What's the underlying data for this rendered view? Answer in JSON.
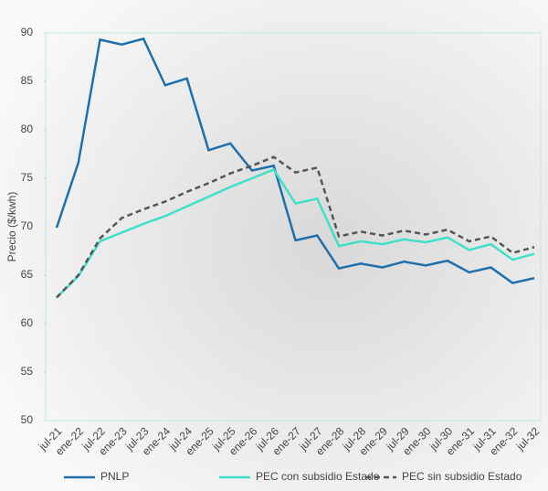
{
  "chart_data": {
    "type": "line",
    "y_label": "Precio ($/kwh)",
    "categories": [
      "jul-21",
      "ene-22",
      "jul-22",
      "ene-23",
      "jul-23",
      "ene-24",
      "jul-24",
      "ene-25",
      "jul-25",
      "ene-26",
      "jul-26",
      "ene-27",
      "jul-27",
      "ene-28",
      "jul-28",
      "ene-29",
      "jul-29",
      "ene-30",
      "jul-30",
      "ene-31",
      "jul-31",
      "ene-32",
      "jul-32"
    ],
    "series": [
      {
        "name": "PNLP",
        "color": "#1f6fad",
        "line_style": "solid",
        "values": [
          69.9,
          76.6,
          89.3,
          88.8,
          89.4,
          84.6,
          85.3,
          77.9,
          78.6,
          75.8,
          76.3,
          68.6,
          69.1,
          65.7,
          66.2,
          65.8,
          66.4,
          66.0,
          66.5,
          65.3,
          65.8,
          64.2,
          64.7
        ]
      },
      {
        "name": "PEC con subsidio Estado",
        "color": "#3ee0c8",
        "line_style": "solid",
        "values": [
          62.7,
          64.9,
          68.5,
          69.4,
          70.3,
          71.1,
          72.1,
          73.1,
          74.1,
          75.0,
          75.9,
          72.4,
          72.9,
          68.0,
          68.5,
          68.2,
          68.7,
          68.4,
          68.9,
          67.6,
          68.2,
          66.6,
          67.2
        ]
      },
      {
        "name": "PEC sin subsidio Estado",
        "color": "#555555",
        "line_style": "dashed",
        "values": [
          62.7,
          65.0,
          68.8,
          70.9,
          71.8,
          72.6,
          73.6,
          74.5,
          75.5,
          76.3,
          77.2,
          75.6,
          76.1,
          69.0,
          69.5,
          69.1,
          69.6,
          69.2,
          69.7,
          68.5,
          69.0,
          67.3,
          67.9
        ]
      }
    ],
    "ylim": [
      50,
      90
    ],
    "yticks": [
      50,
      55,
      60,
      65,
      70,
      75,
      80,
      85,
      90
    ],
    "legend": "bottom"
  }
}
